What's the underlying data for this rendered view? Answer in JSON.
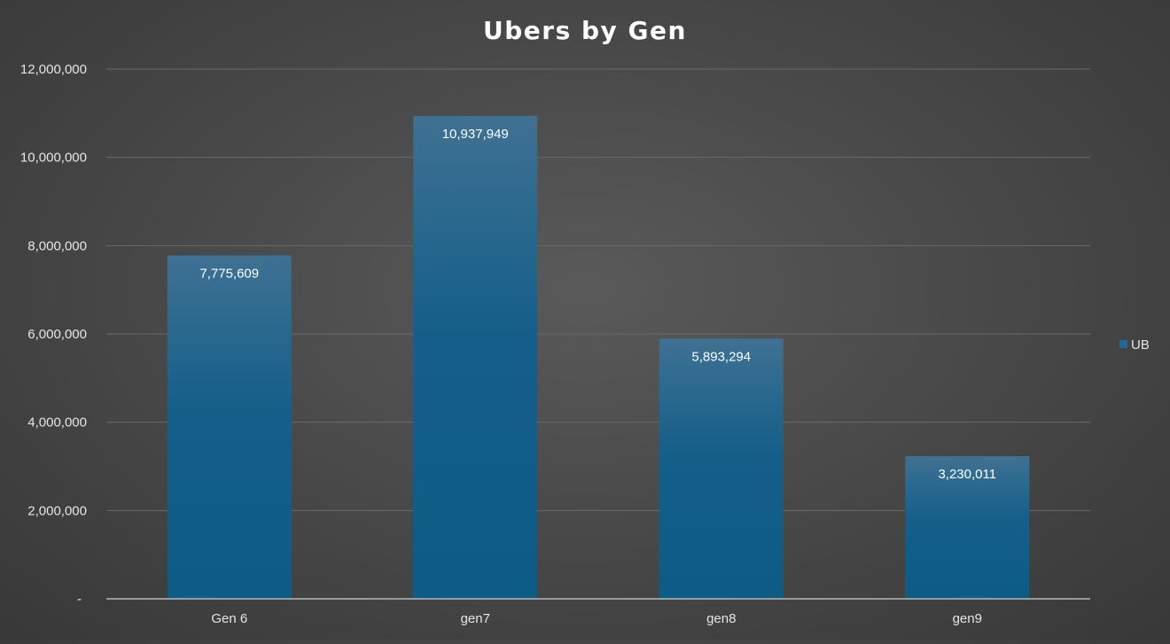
{
  "chart_data": {
    "type": "bar",
    "title": "Ubers by Gen",
    "categories": [
      "Gen 6",
      "gen7",
      "gen8",
      "gen9"
    ],
    "series": [
      {
        "name": "UB",
        "values": [
          7775609,
          10937949,
          5893294,
          3230011
        ]
      }
    ],
    "data_labels": [
      "7,775,609",
      "10,937,949",
      "5,893,294",
      "3,230,011"
    ],
    "y_ticks": [
      {
        "value": 0,
        "label": "-"
      },
      {
        "value": 2000000,
        "label": "2,000,000"
      },
      {
        "value": 4000000,
        "label": "4,000,000"
      },
      {
        "value": 6000000,
        "label": "6,000,000"
      },
      {
        "value": 8000000,
        "label": "8,000,000"
      },
      {
        "value": 10000000,
        "label": "10,000,000"
      },
      {
        "value": 12000000,
        "label": "12,000,000"
      }
    ],
    "ylim": [
      0,
      12000000
    ],
    "xlabel": "",
    "ylabel": "",
    "grid": true,
    "legend_position": "right",
    "colors": {
      "bar_top": "#3f7192",
      "bar_bottom": "#0d5c86",
      "legend_swatch": "#1a6a9a",
      "gridline": "#6a6a6a",
      "axis": "#b8b8b8"
    }
  }
}
